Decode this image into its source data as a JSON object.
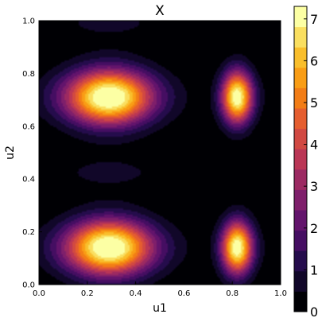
{
  "chart_data": {
    "type": "heatmap",
    "subtype": "filled-contour",
    "title": "X",
    "xlabel": "u1",
    "ylabel": "u2",
    "xlim": [
      0.0,
      1.0
    ],
    "ylim": [
      0.0,
      1.0
    ],
    "x_ticks": [
      "0.0",
      "0.2",
      "0.4",
      "0.6",
      "0.8",
      "1.0"
    ],
    "y_ticks": [
      "0.0",
      "0.2",
      "0.4",
      "0.6",
      "0.8",
      "1.0"
    ],
    "colorbar": {
      "ticks": [
        "0",
        "1",
        "2",
        "3",
        "4",
        "5",
        "6",
        "7"
      ],
      "range": [
        0,
        7.3
      ],
      "colormap": "inferno",
      "levels": 15
    },
    "peaks": [
      {
        "x": 0.29,
        "y": 0.71,
        "value": 7.3
      },
      {
        "x": 0.29,
        "y": 0.14,
        "value": 7.3
      },
      {
        "x": 0.82,
        "y": 0.71,
        "value": 7.3
      },
      {
        "x": 0.82,
        "y": 0.14,
        "value": 7.3
      }
    ],
    "grid": false,
    "legend": "colorbar-right"
  }
}
